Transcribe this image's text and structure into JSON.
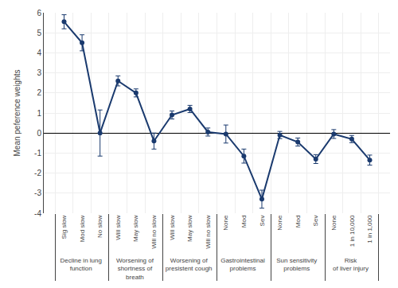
{
  "chart_data": {
    "type": "line",
    "categories": [
      "Sig slow",
      "Mod slow",
      "No slow",
      "Will slow",
      "May slow",
      "Will no slow",
      "Will slow",
      "May slow",
      "Will no slow",
      "None",
      "Mod",
      "Sev",
      "None",
      "Mod",
      "Sev",
      "None",
      "1 in 10,000",
      "1 in 1,000"
    ],
    "groups": [
      "Decline in lung\nfunction",
      "Decline in lung\nfunction",
      "Decline in lung\nfunction",
      "Worsening of\nshortness of\nbreath",
      "Worsening of\nshortness of\nbreath",
      "Worsening of\nshortness of\nbreath",
      "Worsening of\npresistent cough",
      "Worsening of\npresistent cough",
      "Worsening of\npresistent cough",
      "Gastrointestinal\nproblems",
      "Gastrointestinal\nproblems",
      "Gastrointestinal\nproblems",
      "Sun sensitivity\nproblems",
      "Sun sensitivity\nproblems",
      "Sun sensitivity\nproblems",
      "Risk\nof liver injury",
      "Risk\nof liver injury",
      "Risk\nof liver injury"
    ],
    "values": [
      5.55,
      4.5,
      0.0,
      2.6,
      2.0,
      -0.4,
      0.9,
      1.2,
      0.05,
      -0.05,
      -1.15,
      -3.3,
      -0.1,
      -0.45,
      -1.3,
      -0.05,
      -0.3,
      -1.35
    ],
    "errors": [
      0.35,
      0.4,
      1.15,
      0.25,
      0.2,
      0.4,
      0.2,
      0.18,
      0.2,
      0.45,
      0.35,
      0.45,
      0.18,
      0.2,
      0.22,
      0.22,
      0.18,
      0.25
    ],
    "color": "#1a3a6e",
    "marker": "circle",
    "ylabel": "Mean peference weights",
    "ylim": [
      -4.0,
      6.0
    ],
    "yticks": [
      -4.0,
      -3.0,
      -2.0,
      -1.0,
      0.0,
      1.0,
      2.0,
      3.0,
      4.0,
      5.0,
      6.0
    ],
    "grid": true
  }
}
